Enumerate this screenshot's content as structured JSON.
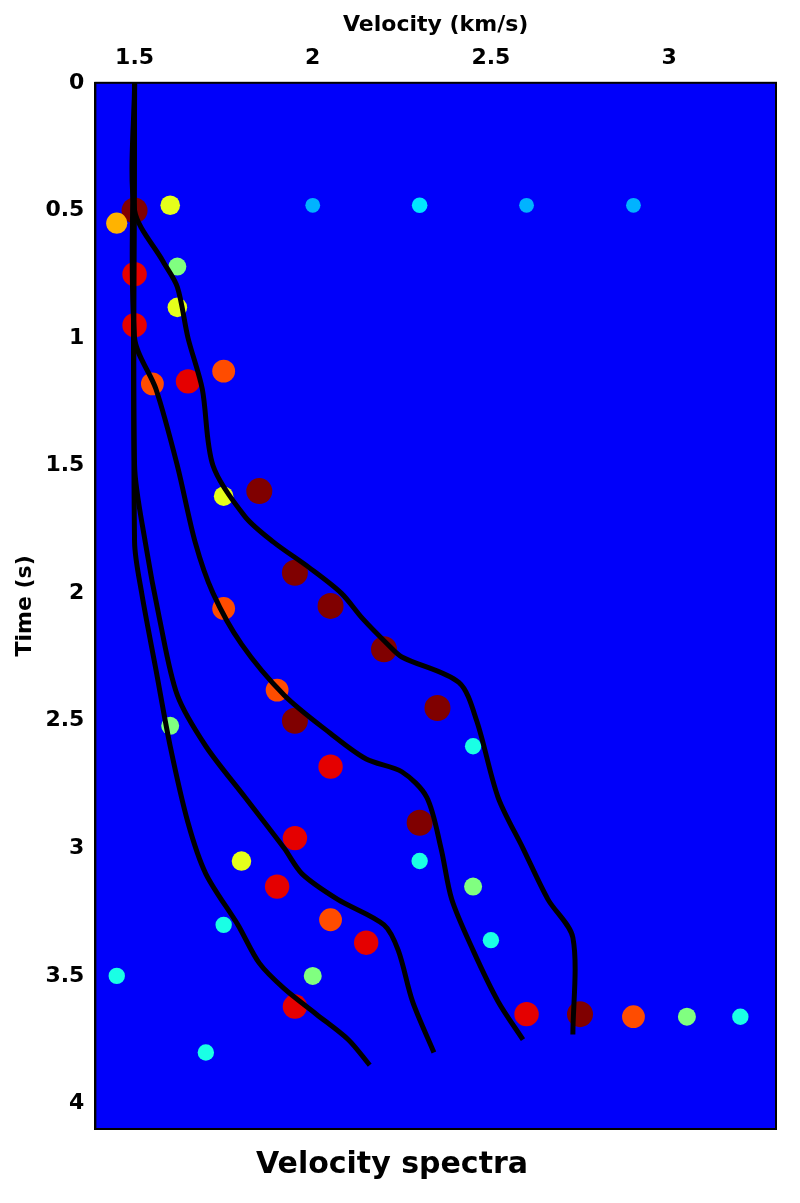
{
  "chart_data": {
    "type": "heatmap",
    "title": "Velocity spectra",
    "x_label": "Velocity (km/s)",
    "y_label": "Time (s)",
    "xlim": [
      1.39,
      3.3
    ],
    "ylim": [
      0,
      4.1
    ],
    "xticks": [
      1.5,
      2,
      2.5,
      3
    ],
    "yticks": [
      0,
      0.5,
      1,
      1.5,
      2,
      2.5,
      3,
      3.5,
      4
    ],
    "grid": false,
    "cells": [
      {
        "x": 1.5,
        "y": 0.5,
        "value": 1
      },
      {
        "x": 1.6,
        "y": 0.48,
        "value": 0.6
      },
      {
        "x": 1.45,
        "y": 0.55,
        "value": 0.7
      },
      {
        "x": 1.5,
        "y": 0.75,
        "value": 0.9
      },
      {
        "x": 1.62,
        "y": 0.72,
        "value": 0.5
      },
      {
        "x": 1.5,
        "y": 0.95,
        "value": 0.9
      },
      {
        "x": 1.62,
        "y": 0.88,
        "value": 0.6
      },
      {
        "x": 1.55,
        "y": 1.18,
        "value": 0.8
      },
      {
        "x": 1.65,
        "y": 1.17,
        "value": 0.9
      },
      {
        "x": 1.75,
        "y": 1.13,
        "value": 0.8
      },
      {
        "x": 1.85,
        "y": 1.6,
        "value": 1
      },
      {
        "x": 1.75,
        "y": 1.62,
        "value": 0.6
      },
      {
        "x": 1.95,
        "y": 1.92,
        "value": 1
      },
      {
        "x": 2.05,
        "y": 2.05,
        "value": 1
      },
      {
        "x": 1.75,
        "y": 2.06,
        "value": 0.8
      },
      {
        "x": 2.2,
        "y": 2.22,
        "value": 1
      },
      {
        "x": 2.35,
        "y": 2.45,
        "value": 1
      },
      {
        "x": 1.9,
        "y": 2.38,
        "value": 0.8
      },
      {
        "x": 1.95,
        "y": 2.5,
        "value": 1
      },
      {
        "x": 1.6,
        "y": 2.52,
        "value": 0.5
      },
      {
        "x": 2.05,
        "y": 2.68,
        "value": 0.9
      },
      {
        "x": 2.3,
        "y": 2.9,
        "value": 1
      },
      {
        "x": 1.95,
        "y": 2.96,
        "value": 0.9
      },
      {
        "x": 1.9,
        "y": 3.15,
        "value": 0.9
      },
      {
        "x": 2.45,
        "y": 3.15,
        "value": 0.5
      },
      {
        "x": 2.05,
        "y": 3.28,
        "value": 0.8
      },
      {
        "x": 2.15,
        "y": 3.37,
        "value": 0.9
      },
      {
        "x": 1.95,
        "y": 3.62,
        "value": 0.9
      },
      {
        "x": 2.5,
        "y": 3.36,
        "value": 0.4
      },
      {
        "x": 1.45,
        "y": 3.5,
        "value": 0.4
      },
      {
        "x": 1.8,
        "y": 3.05,
        "value": 0.6
      },
      {
        "x": 1.75,
        "y": 3.3,
        "value": 0.4
      },
      {
        "x": 2.0,
        "y": 3.5,
        "value": 0.5
      },
      {
        "x": 1.7,
        "y": 3.8,
        "value": 0.4
      },
      {
        "x": 2.3,
        "y": 3.05,
        "value": 0.4
      },
      {
        "x": 2.45,
        "y": 2.6,
        "value": 0.4
      },
      {
        "x": 2.6,
        "y": 3.65,
        "value": 0.9
      },
      {
        "x": 2.75,
        "y": 3.65,
        "value": 1
      },
      {
        "x": 2.9,
        "y": 3.66,
        "value": 0.8
      },
      {
        "x": 3.05,
        "y": 3.66,
        "value": 0.5
      },
      {
        "x": 3.2,
        "y": 3.66,
        "value": 0.4
      },
      {
        "x": 2.0,
        "y": 0.48,
        "value": 0.3
      },
      {
        "x": 2.3,
        "y": 0.48,
        "value": 0.35
      },
      {
        "x": 2.6,
        "y": 0.48,
        "value": 0.3
      },
      {
        "x": 2.9,
        "y": 0.48,
        "value": 0.3
      }
    ],
    "series": [
      {
        "color": "#000000",
        "x": [
          1.5,
          1.5,
          1.58,
          1.62,
          1.65,
          1.69,
          1.72,
          1.81,
          1.89,
          1.99,
          2.08,
          2.14,
          2.21,
          2.25,
          2.41,
          2.46,
          2.52,
          2.59,
          2.66,
          2.73,
          2.73
        ],
        "y": [
          0,
          0.5,
          0.7,
          0.8,
          1.0,
          1.2,
          1.5,
          1.7,
          1.8,
          1.9,
          2.0,
          2.1,
          2.2,
          2.25,
          2.35,
          2.5,
          2.8,
          3.0,
          3.2,
          3.35,
          3.73
        ]
      },
      {
        "color": "#000000",
        "x": [
          1.5,
          1.5,
          1.56,
          1.62,
          1.67,
          1.72,
          1.8,
          1.92,
          2.05,
          2.15,
          2.25,
          2.32,
          2.36,
          2.39,
          2.45,
          2.52,
          2.59
        ],
        "y": [
          0,
          1.0,
          1.2,
          1.5,
          1.8,
          2.0,
          2.2,
          2.4,
          2.55,
          2.65,
          2.7,
          2.8,
          3.0,
          3.2,
          3.4,
          3.6,
          3.75
        ]
      },
      {
        "color": "#000000",
        "x": [
          1.5,
          1.5,
          1.53,
          1.57,
          1.62,
          1.7,
          1.81,
          1.92,
          1.97,
          2.07,
          2.2,
          2.24,
          2.28,
          2.34
        ],
        "y": [
          0,
          1.5,
          1.8,
          2.1,
          2.4,
          2.6,
          2.8,
          3.0,
          3.1,
          3.2,
          3.3,
          3.4,
          3.6,
          3.8
        ]
      },
      {
        "color": "#000000",
        "x": [
          1.5,
          1.5,
          1.52,
          1.56,
          1.6,
          1.65,
          1.7,
          1.79,
          1.85,
          1.92,
          2.01,
          2.1,
          2.16
        ],
        "y": [
          0,
          1.8,
          2.0,
          2.3,
          2.6,
          2.9,
          3.1,
          3.3,
          3.45,
          3.55,
          3.65,
          3.75,
          3.85
        ]
      }
    ]
  }
}
